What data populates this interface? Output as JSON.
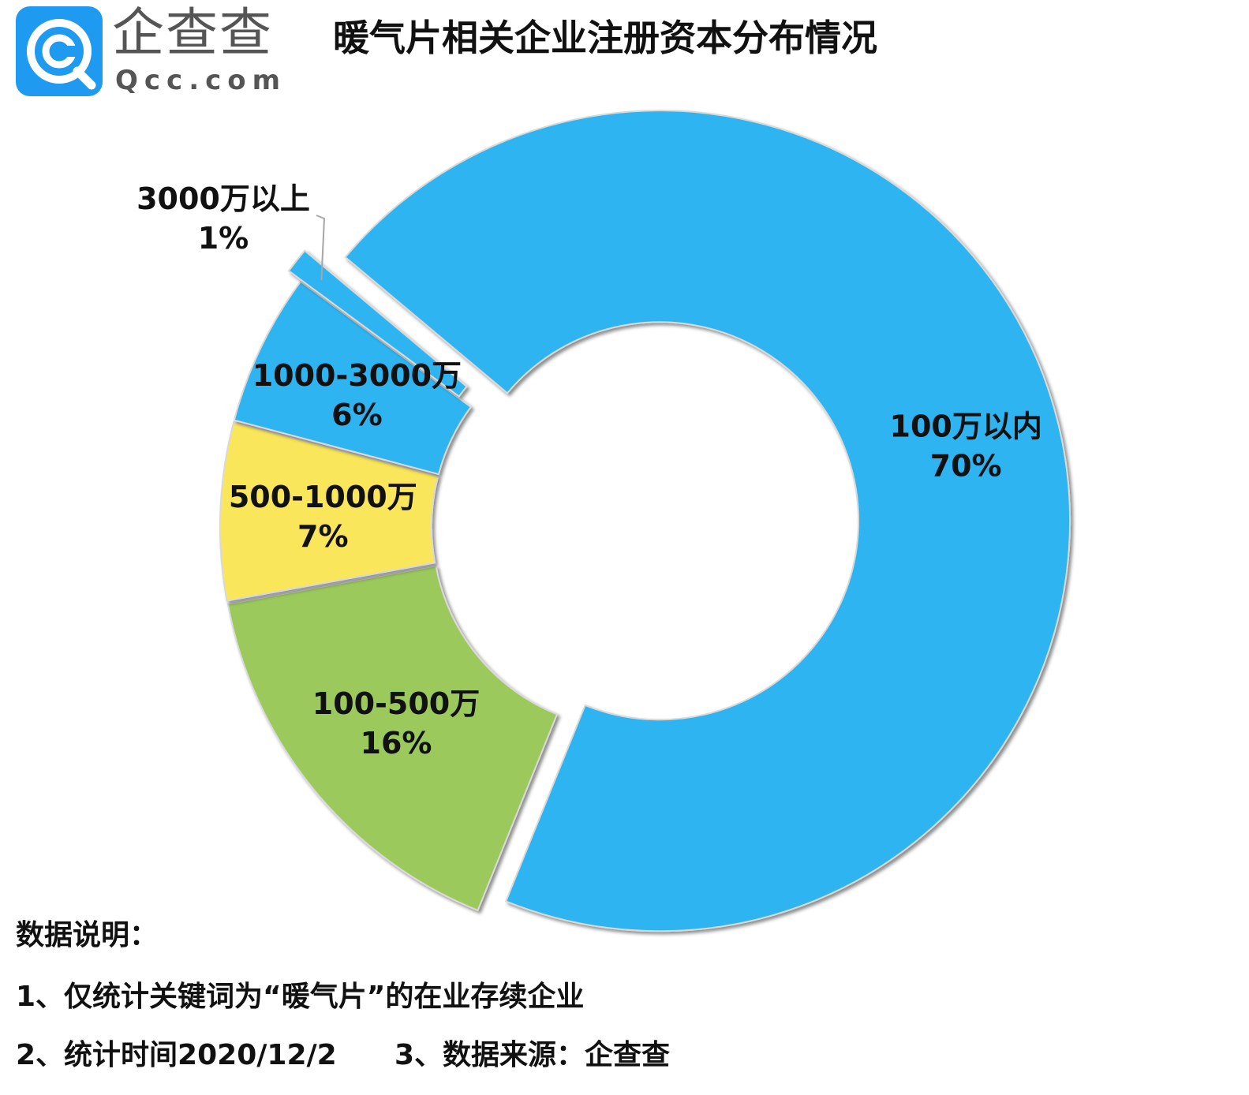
{
  "brand": {
    "name_cn": "企查查",
    "name_en": "Qcc.com",
    "logo_icon": "qcc-logo-icon"
  },
  "title": "暖气片相关企业注册资本分布情况",
  "chart_data": {
    "type": "pie",
    "variant": "donut",
    "title": "暖气片相关企业注册资本分布情况",
    "slices": [
      {
        "label": "100万以内",
        "value": 70,
        "display": "70%",
        "color": "#2db4f0"
      },
      {
        "label": "100-500万",
        "value": 16,
        "display": "16%",
        "color": "#9bc95c"
      },
      {
        "label": "500-1000万",
        "value": 7,
        "display": "7%",
        "color": "#fae65a"
      },
      {
        "label": "1000-3000万",
        "value": 6,
        "display": "6%",
        "color": "#2db4f0"
      },
      {
        "label": "3000万以上",
        "value": 1,
        "display": "1%",
        "color": "#2db4f0"
      }
    ],
    "legend": "none",
    "grid": false
  },
  "notes": {
    "heading": "数据说明：",
    "line1": "1、仅统计关键词为“暖气片”的在业存续企业",
    "line2": "2、统计时间2020/12/2",
    "line3": "3、数据来源：企查查"
  }
}
